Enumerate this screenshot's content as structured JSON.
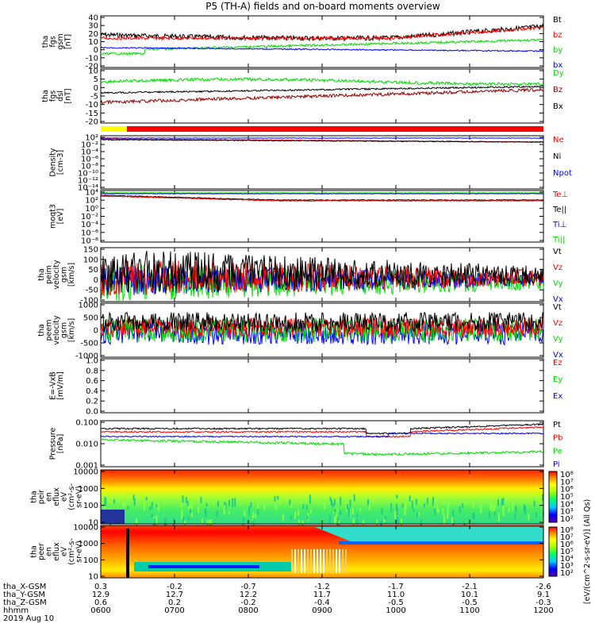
{
  "title": "P5 (TH-A) fields and on-board moments overview",
  "date_label": "2019 Aug 10",
  "colors": {
    "black": "#000000",
    "red": "#ff0000",
    "green": "#00dd00",
    "blue": "#0000ff",
    "darkred": "#990000"
  },
  "time_axis": {
    "rows": [
      {
        "label": "tha_X-GSM",
        "values": [
          "0.3",
          "-0.2",
          "-0.7",
          "-1.2",
          "-1.7",
          "-2.1",
          "-2.6"
        ]
      },
      {
        "label": "tha_Y-GSM",
        "values": [
          "12.9",
          "12.7",
          "12.2",
          "11.7",
          "11.0",
          "10.1",
          "9.1"
        ]
      },
      {
        "label": "tha_Z-GSM",
        "values": [
          "0.6",
          "0.2",
          "-0.2",
          "-0.4",
          "-0.5",
          "-0.5",
          "-0.3"
        ]
      },
      {
        "label": "hhmm",
        "values": [
          "0600",
          "0700",
          "0800",
          "0900",
          "1000",
          "1100",
          "1200"
        ]
      }
    ]
  },
  "chart_data": [
    {
      "type": "line",
      "ylabel": [
        "tha",
        "fgs",
        "gsm",
        "[nT]"
      ],
      "ticks": [
        "40",
        "30",
        "20",
        "10",
        "0",
        "-10",
        "-20"
      ],
      "ylim": [
        -20,
        40
      ],
      "legend": [
        {
          "name": "Bt",
          "color": "#000000"
        },
        {
          "name": "bz",
          "color": "#ff0000"
        },
        {
          "name": "by",
          "color": "#00dd00"
        },
        {
          "name": "bx",
          "color": "#0000ff"
        }
      ]
    },
    {
      "type": "line",
      "ylabel": [
        "tha",
        "fgs",
        "dsl",
        "[nT]"
      ],
      "ticks": [
        "10",
        "5",
        "0",
        "-5",
        "-10",
        "-15",
        "-20"
      ],
      "ylim": [
        -22,
        12
      ],
      "legend": [
        {
          "name": "Dy",
          "color": "#00dd00"
        },
        {
          "name": "Bz",
          "color": "#990000"
        },
        {
          "name": "Bx",
          "color": "#000000"
        }
      ]
    },
    {
      "type": "line",
      "ylabel": [
        "Density",
        "[cm-3]"
      ],
      "ticks": [
        "10²",
        "10⁻²",
        "10⁻⁴",
        "10⁻⁶",
        "10⁻⁸",
        "10⁻¹⁰",
        "10⁻¹²",
        "10⁻¹⁴"
      ],
      "legend": [
        {
          "name": "Ne",
          "color": "#ff0000"
        },
        {
          "name": "Ni",
          "color": "#000000"
        },
        {
          "name": "Npot",
          "color": "#0000ff"
        }
      ]
    },
    {
      "type": "line",
      "ylabel": [
        "moqt3",
        "[eV]"
      ],
      "ticks": [
        "10⁴",
        "10²",
        "10⁰",
        "10⁻²",
        "10⁻⁴",
        "10⁻⁶",
        "10⁻⁸"
      ],
      "legend": [
        {
          "name": "Te⊥",
          "color": "#ff0000"
        },
        {
          "name": "Te||",
          "color": "#000000"
        },
        {
          "name": "Ti⊥",
          "color": "#0000ff"
        },
        {
          "name": "Ti||",
          "color": "#00dd00"
        }
      ]
    },
    {
      "type": "line",
      "ylabel": [
        "tha",
        "peim",
        "velocity",
        "gsm",
        "[km/s]"
      ],
      "ticks": [
        "150",
        "100",
        "50",
        "0",
        "-50",
        "-100"
      ],
      "ylim": [
        -100,
        150
      ],
      "legend": [
        {
          "name": "Vt",
          "color": "#000000"
        },
        {
          "name": "Vz",
          "color": "#ff0000"
        },
        {
          "name": "Vy",
          "color": "#00dd00"
        },
        {
          "name": "Vx",
          "color": "#0000ff"
        }
      ]
    },
    {
      "type": "line",
      "ylabel": [
        "tha",
        "peem",
        "velocity",
        "gsm",
        "[km/s]"
      ],
      "ticks": [
        "1000",
        "500",
        "0",
        "-500",
        "-1000"
      ],
      "ylim": [
        -1000,
        1000
      ],
      "legend": [
        {
          "name": "Vt",
          "color": "#000000"
        },
        {
          "name": "Vz",
          "color": "#ff0000"
        },
        {
          "name": "Vy",
          "color": "#00dd00"
        },
        {
          "name": "Vx",
          "color": "#0000ff"
        }
      ]
    },
    {
      "type": "line",
      "ylabel": [
        "E=-VxB",
        "[mV/m]"
      ],
      "ticks": [
        "1.0",
        "0.8",
        "0.6",
        "0.4",
        "0.2",
        "0.0"
      ],
      "ylim": [
        0,
        1
      ],
      "legend": [
        {
          "name": "Ez",
          "color": "#ff0000"
        },
        {
          "name": "Ey",
          "color": "#00dd00"
        },
        {
          "name": "Ex",
          "color": "#0000ff"
        }
      ]
    },
    {
      "type": "line",
      "ylabel": [
        "Pressure",
        "[nPa]"
      ],
      "ticks": [
        "0.100",
        "0.010",
        "0.001"
      ],
      "legend": [
        {
          "name": "Pt",
          "color": "#000000"
        },
        {
          "name": "Pb",
          "color": "#ff0000"
        },
        {
          "name": "Pe",
          "color": "#00dd00"
        },
        {
          "name": "Pi",
          "color": "#0000ff"
        }
      ]
    },
    {
      "type": "heatmap",
      "ylabel": [
        "tha",
        "peir",
        "en",
        "eflux",
        "eV",
        "(cm²-s-",
        "sr-eV)"
      ],
      "ticks": [
        "10000",
        "1000",
        "100",
        "10"
      ],
      "colorbar_ticks": [
        "10⁸",
        "10⁷",
        "10⁶",
        "10⁵",
        "10⁴",
        "10³",
        "10²"
      ]
    },
    {
      "type": "heatmap",
      "ylabel": [
        "tha",
        "peer",
        "en",
        "eflux",
        "eV",
        "(cm²-s-",
        "sr-eV)"
      ],
      "ticks": [
        "10000",
        "1000",
        "100",
        "10"
      ],
      "colorbar_ticks": [
        "10⁸",
        "10⁷",
        "10⁶",
        "10⁵",
        "10⁴",
        "10³",
        "10²"
      ]
    }
  ],
  "colorbar_label": "[eV/(cm^2-s-sr-eV)] (All Qs)"
}
